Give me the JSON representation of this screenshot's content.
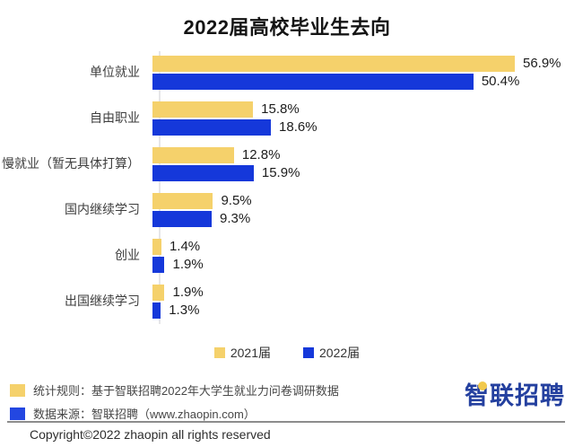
{
  "title": "2022届高校毕业生去向",
  "chart_data": {
    "type": "bar",
    "orientation": "horizontal",
    "title": "2022届高校毕业生去向",
    "categories": [
      "单位就业",
      "自由职业",
      "慢就业（暂无具体打算）",
      "国内继续学习",
      "创业",
      "出国继续学习"
    ],
    "series": [
      {
        "name": "2021届",
        "color": "#f5d16b",
        "values": [
          56.9,
          15.8,
          12.8,
          9.5,
          1.4,
          1.9
        ]
      },
      {
        "name": "2022届",
        "color": "#1538da",
        "values": [
          50.4,
          18.6,
          15.9,
          9.3,
          1.9,
          1.3
        ]
      }
    ],
    "value_suffix": "%",
    "xlim": [
      0,
      60
    ],
    "grid": false,
    "legend_position": "bottom",
    "data_labels": true
  },
  "notes": [
    {
      "label": "统计规则：基于智联招聘2022年大学生就业力问卷调研数据",
      "color": "#f5d16b"
    },
    {
      "label": "数据来源：智联招聘（www.zhaopin.com）",
      "color": "#2347e1"
    }
  ],
  "logo": {
    "text": "智联招聘"
  },
  "copyright": "Copyright©2022 zhaopin all rights reserved"
}
